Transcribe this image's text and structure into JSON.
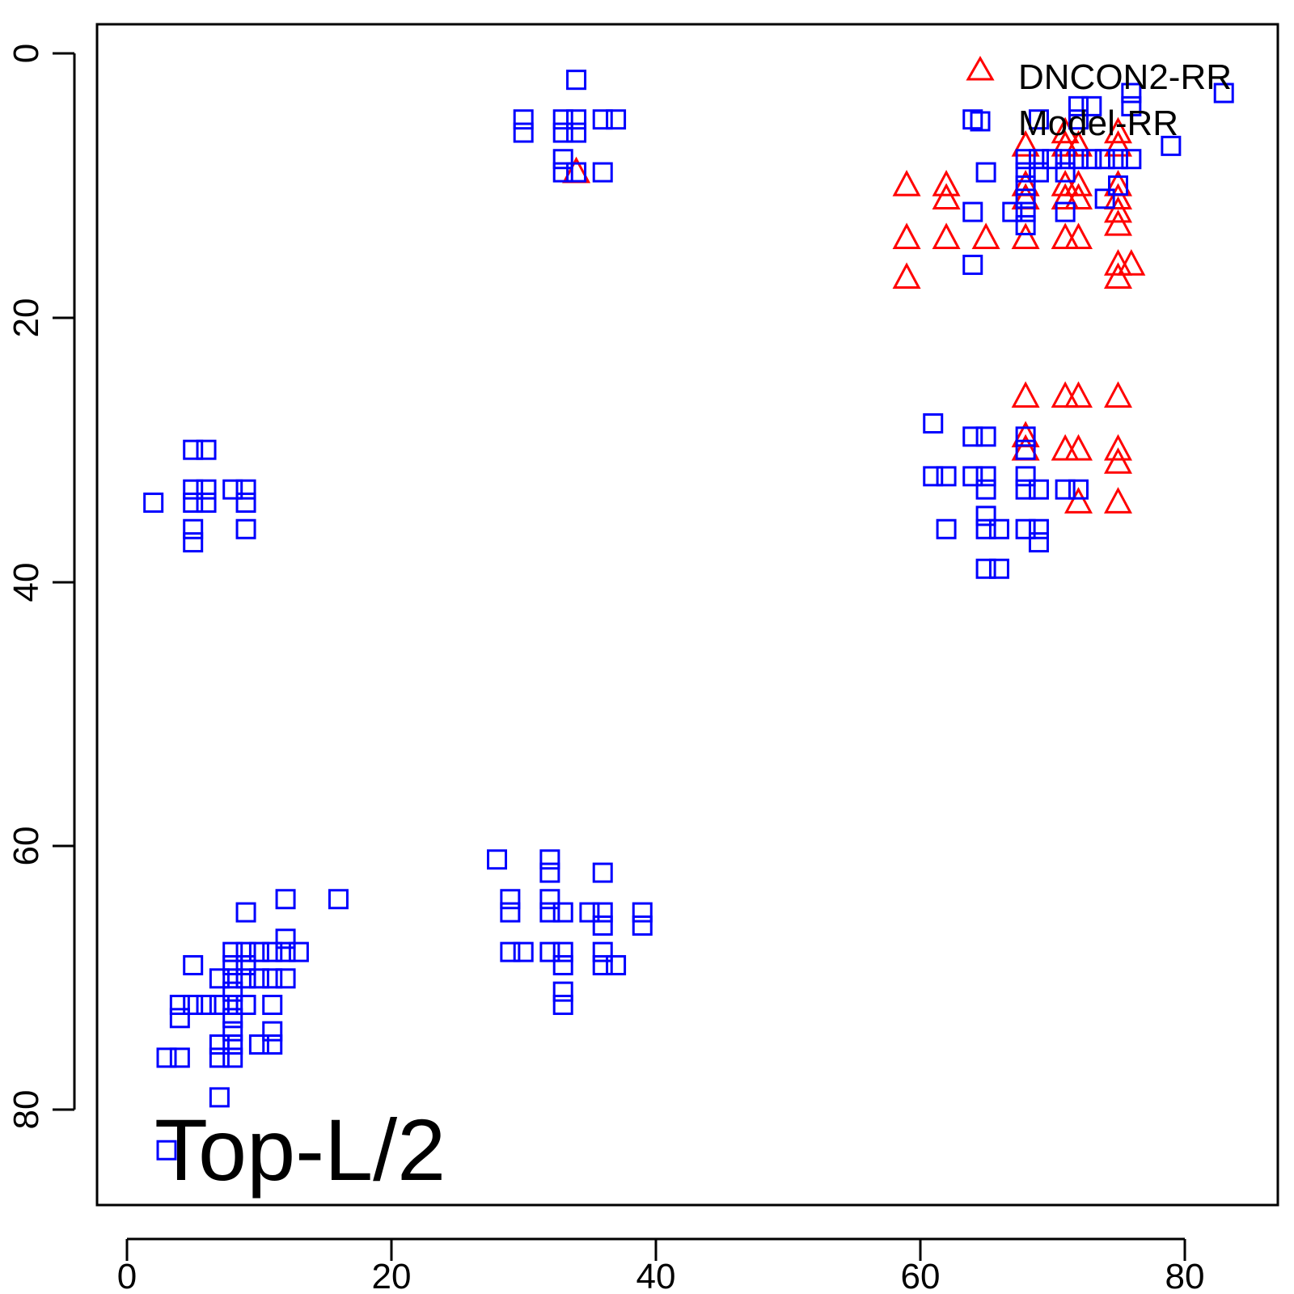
{
  "chart_data": {
    "type": "scatter",
    "title": "",
    "xlabel": "",
    "ylabel": "",
    "plot_label": "Top-L/2",
    "xlim": [
      -2.2,
      87.2
    ],
    "ylim": [
      -2.2,
      87.2
    ],
    "y_reversed": true,
    "x_ticks": [
      "0",
      "20",
      "40",
      "60",
      "80"
    ],
    "y_ticks": [
      "0",
      "20",
      "40",
      "60",
      "80"
    ],
    "legend_position": "top-right",
    "series": [
      {
        "name": "DNCON2-RR",
        "marker": "triangle",
        "color": "#ff0000",
        "points": [
          [
            34,
            9
          ],
          [
            59,
            10
          ],
          [
            59,
            14
          ],
          [
            59,
            17
          ],
          [
            62,
            10
          ],
          [
            62,
            11
          ],
          [
            62,
            14
          ],
          [
            65,
            14
          ],
          [
            68,
            7
          ],
          [
            68,
            10
          ],
          [
            68,
            11
          ],
          [
            68,
            14
          ],
          [
            68,
            26
          ],
          [
            68,
            29
          ],
          [
            68,
            30
          ],
          [
            71,
            6
          ],
          [
            71,
            7
          ],
          [
            71,
            10
          ],
          [
            71,
            11
          ],
          [
            71,
            14
          ],
          [
            71,
            26
          ],
          [
            71,
            30
          ],
          [
            72,
            7
          ],
          [
            72,
            10
          ],
          [
            72,
            11
          ],
          [
            72,
            14
          ],
          [
            72,
            26
          ],
          [
            72,
            30
          ],
          [
            72,
            34
          ],
          [
            75,
            6
          ],
          [
            75,
            7
          ],
          [
            75,
            10
          ],
          [
            75,
            11
          ],
          [
            75,
            12
          ],
          [
            75,
            13
          ],
          [
            75,
            16
          ],
          [
            75,
            17
          ],
          [
            75,
            26
          ],
          [
            75,
            30
          ],
          [
            75,
            31
          ],
          [
            75,
            34
          ],
          [
            76,
            16
          ]
        ]
      },
      {
        "name": "Model-RR",
        "marker": "square",
        "color": "#0000ff",
        "points": [
          [
            34,
            2
          ],
          [
            30,
            5
          ],
          [
            30,
            6
          ],
          [
            33,
            5
          ],
          [
            33,
            6
          ],
          [
            34,
            5
          ],
          [
            34,
            6
          ],
          [
            36,
            5
          ],
          [
            37,
            5
          ],
          [
            33,
            8
          ],
          [
            33,
            9
          ],
          [
            34,
            9
          ],
          [
            36,
            9
          ],
          [
            2,
            34
          ],
          [
            5,
            30
          ],
          [
            6,
            30
          ],
          [
            5,
            33
          ],
          [
            6,
            33
          ],
          [
            5,
            34
          ],
          [
            6,
            34
          ],
          [
            8,
            33
          ],
          [
            9,
            33
          ],
          [
            9,
            34
          ],
          [
            5,
            36
          ],
          [
            5,
            37
          ],
          [
            9,
            36
          ],
          [
            64,
            5
          ],
          [
            65,
            9
          ],
          [
            64,
            12
          ],
          [
            67,
            12
          ],
          [
            64,
            16
          ],
          [
            68,
            8
          ],
          [
            68,
            9
          ],
          [
            68,
            10
          ],
          [
            68,
            11
          ],
          [
            68,
            12
          ],
          [
            68,
            13
          ],
          [
            69,
            5
          ],
          [
            69,
            8
          ],
          [
            69,
            9
          ],
          [
            70,
            8
          ],
          [
            71,
            8
          ],
          [
            71,
            9
          ],
          [
            71,
            12
          ],
          [
            72,
            4
          ],
          [
            72,
            5
          ],
          [
            72,
            8
          ],
          [
            73,
            4
          ],
          [
            73,
            8
          ],
          [
            74,
            8
          ],
          [
            74,
            11
          ],
          [
            75,
            8
          ],
          [
            75,
            10
          ],
          [
            76,
            3
          ],
          [
            76,
            4
          ],
          [
            76,
            8
          ],
          [
            79,
            7
          ],
          [
            83,
            3
          ],
          [
            61,
            28
          ],
          [
            61,
            32
          ],
          [
            62,
            32
          ],
          [
            62,
            36
          ],
          [
            64,
            29
          ],
          [
            64,
            32
          ],
          [
            65,
            29
          ],
          [
            65,
            32
          ],
          [
            65,
            33
          ],
          [
            65,
            35
          ],
          [
            65,
            36
          ],
          [
            65,
            39
          ],
          [
            66,
            36
          ],
          [
            66,
            39
          ],
          [
            68,
            29
          ],
          [
            68,
            30
          ],
          [
            68,
            32
          ],
          [
            68,
            33
          ],
          [
            68,
            36
          ],
          [
            69,
            33
          ],
          [
            69,
            36
          ],
          [
            69,
            37
          ],
          [
            71,
            33
          ],
          [
            72,
            33
          ],
          [
            28,
            61
          ],
          [
            29,
            64
          ],
          [
            29,
            65
          ],
          [
            29,
            68
          ],
          [
            30,
            68
          ],
          [
            32,
            61
          ],
          [
            32,
            62
          ],
          [
            32,
            64
          ],
          [
            32,
            65
          ],
          [
            32,
            68
          ],
          [
            33,
            65
          ],
          [
            33,
            68
          ],
          [
            33,
            69
          ],
          [
            33,
            71
          ],
          [
            33,
            72
          ],
          [
            35,
            65
          ],
          [
            36,
            62
          ],
          [
            36,
            65
          ],
          [
            36,
            66
          ],
          [
            36,
            68
          ],
          [
            36,
            69
          ],
          [
            37,
            69
          ],
          [
            39,
            65
          ],
          [
            39,
            66
          ],
          [
            3,
            76
          ],
          [
            4,
            76
          ],
          [
            4,
            72
          ],
          [
            4,
            73
          ],
          [
            5,
            69
          ],
          [
            5,
            72
          ],
          [
            6,
            72
          ],
          [
            7,
            70
          ],
          [
            7,
            72
          ],
          [
            7,
            75
          ],
          [
            7,
            76
          ],
          [
            7,
            79
          ],
          [
            8,
            68
          ],
          [
            8,
            69
          ],
          [
            8,
            70
          ],
          [
            8,
            71
          ],
          [
            8,
            72
          ],
          [
            8,
            73
          ],
          [
            8,
            74
          ],
          [
            8,
            75
          ],
          [
            8,
            76
          ],
          [
            9,
            65
          ],
          [
            9,
            68
          ],
          [
            9,
            69
          ],
          [
            9,
            70
          ],
          [
            9,
            72
          ],
          [
            10,
            68
          ],
          [
            10,
            70
          ],
          [
            10,
            75
          ],
          [
            11,
            68
          ],
          [
            11,
            70
          ],
          [
            11,
            72
          ],
          [
            11,
            74
          ],
          [
            11,
            75
          ],
          [
            12,
            64
          ],
          [
            12,
            67
          ],
          [
            12,
            68
          ],
          [
            12,
            70
          ],
          [
            13,
            68
          ],
          [
            16,
            64
          ],
          [
            3,
            83
          ]
        ]
      }
    ]
  }
}
